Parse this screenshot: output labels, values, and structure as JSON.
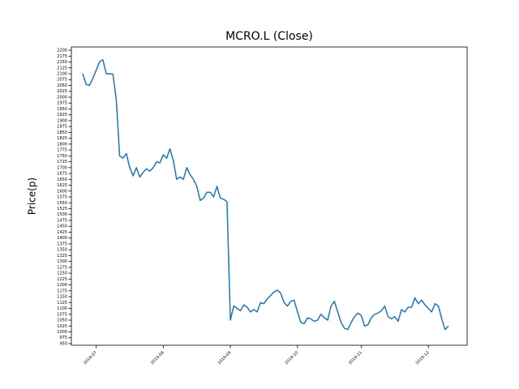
{
  "chart_data": {
    "type": "line",
    "title": "MCRO.L (Close)",
    "y_label": "Price(p)",
    "color": "#1f77b4",
    "categories": [
      null,
      null,
      null,
      null,
      "2019-07",
      null,
      null,
      null,
      null,
      null,
      null,
      null,
      null,
      null,
      null,
      null,
      null,
      null,
      null,
      null,
      null,
      null,
      null,
      null,
      "2019-08",
      null,
      null,
      null,
      null,
      null,
      null,
      null,
      null,
      null,
      null,
      null,
      null,
      null,
      null,
      null,
      null,
      null,
      null,
      null,
      "2019-09",
      null,
      null,
      null,
      null,
      null,
      null,
      null,
      null,
      null,
      null,
      null,
      null,
      null,
      null,
      null,
      null,
      null,
      null,
      null,
      "2019-10",
      null,
      null,
      null,
      null,
      null,
      null,
      null,
      null,
      null,
      null,
      null,
      null,
      null,
      null,
      null,
      null,
      null,
      null,
      "2019-11",
      null,
      null,
      null,
      null,
      null,
      null,
      null,
      null,
      null,
      null,
      null,
      null,
      null,
      null,
      null,
      null,
      null,
      null,
      null,
      "2019-12",
      null,
      null,
      null,
      null,
      null,
      null
    ],
    "values": [
      2100,
      2055,
      2050,
      2080,
      2115,
      2150,
      2160,
      2100,
      2100,
      2098,
      1990,
      1750,
      1740,
      1760,
      1700,
      1665,
      1700,
      1660,
      1680,
      1695,
      1685,
      1700,
      1725,
      1720,
      1755,
      1740,
      1780,
      1730,
      1650,
      1660,
      1650,
      1700,
      1670,
      1650,
      1620,
      1560,
      1570,
      1595,
      1595,
      1575,
      1620,
      1570,
      1565,
      1555,
      1050,
      1110,
      1100,
      1090,
      1115,
      1105,
      1085,
      1095,
      1085,
      1125,
      1120,
      1140,
      1155,
      1170,
      1178,
      1165,
      1125,
      1110,
      1130,
      1135,
      1085,
      1040,
      1035,
      1060,
      1055,
      1045,
      1050,
      1075,
      1060,
      1050,
      1110,
      1130,
      1085,
      1040,
      1015,
      1010,
      1040,
      1065,
      1080,
      1070,
      1025,
      1030,
      1060,
      1075,
      1080,
      1090,
      1110,
      1065,
      1055,
      1065,
      1045,
      1095,
      1085,
      1105,
      1105,
      1145,
      1120,
      1135,
      1115,
      1100,
      1085,
      1120,
      1110,
      1055,
      1010,
      1025
    ],
    "ylim": [
      943,
      2214
    ],
    "yticks": [
      950,
      975,
      1000,
      1025,
      1050,
      1075,
      1100,
      1125,
      1150,
      1175,
      1200,
      1225,
      1250,
      1275,
      1300,
      1325,
      1350,
      1375,
      1400,
      1425,
      1450,
      1475,
      1500,
      1525,
      1550,
      1575,
      1600,
      1625,
      1650,
      1675,
      1700,
      1725,
      1750,
      1775,
      1800,
      1825,
      1850,
      1875,
      1900,
      1925,
      1950,
      1975,
      2000,
      2025,
      2050,
      2075,
      2100,
      2125,
      2150,
      2175,
      2200
    ],
    "grid": false
  }
}
